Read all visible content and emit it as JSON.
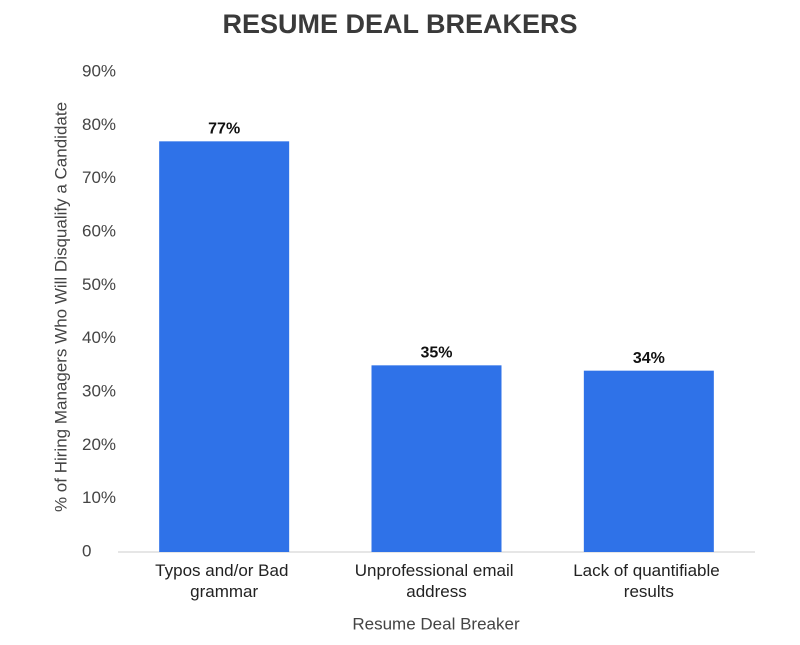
{
  "chart_data": {
    "type": "bar",
    "title": "RESUME DEAL BREAKERS",
    "x_label": "Resume Deal Breaker",
    "y_label": "% of Hiring Managers Who Will Disqualify a Candidate",
    "categories": [
      "Typos and/or Bad grammar",
      "Unprofessional email address",
      "Lack of quantifiable results"
    ],
    "values": [
      77,
      35,
      34
    ],
    "value_labels": [
      "77%",
      "35%",
      "34%"
    ],
    "color": "#2f72e8",
    "ylim": [
      0,
      90
    ],
    "yticks": [
      0,
      {
        "value": 10,
        "label": "10%"
      },
      {
        "value": 20,
        "label": "20%"
      },
      {
        "value": 30,
        "label": "30%"
      },
      {
        "value": 40,
        "label": "40%"
      },
      {
        "value": 50,
        "label": "50%"
      },
      {
        "value": 60,
        "label": "60%"
      },
      {
        "value": 70,
        "label": "70%"
      },
      {
        "value": 80,
        "label": "80%"
      },
      {
        "value": 90,
        "label": "90%"
      }
    ],
    "grid": false
  }
}
